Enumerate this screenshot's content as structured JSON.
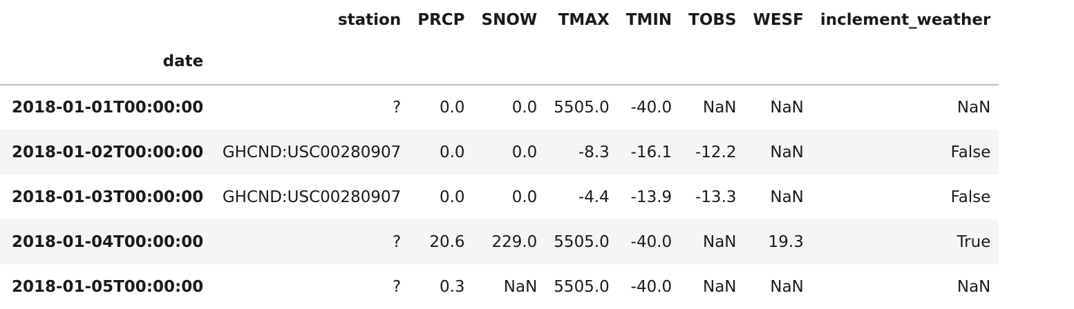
{
  "table": {
    "columns": [
      "station",
      "PRCP",
      "SNOW",
      "TMAX",
      "TMIN",
      "TOBS",
      "WESF",
      "inclement_weather"
    ],
    "index_name": "date",
    "rows": [
      {
        "index": "2018-01-01T00:00:00",
        "values": [
          "?",
          "0.0",
          "0.0",
          "5505.0",
          "-40.0",
          "NaN",
          "NaN",
          "NaN"
        ]
      },
      {
        "index": "2018-01-02T00:00:00",
        "values": [
          "GHCND:USC00280907",
          "0.0",
          "0.0",
          "-8.3",
          "-16.1",
          "-12.2",
          "NaN",
          "False"
        ]
      },
      {
        "index": "2018-01-03T00:00:00",
        "values": [
          "GHCND:USC00280907",
          "0.0",
          "0.0",
          "-4.4",
          "-13.9",
          "-13.3",
          "NaN",
          "False"
        ]
      },
      {
        "index": "2018-01-04T00:00:00",
        "values": [
          "?",
          "20.6",
          "229.0",
          "5505.0",
          "-40.0",
          "NaN",
          "19.3",
          "True"
        ]
      },
      {
        "index": "2018-01-05T00:00:00",
        "values": [
          "?",
          "0.3",
          "NaN",
          "5505.0",
          "-40.0",
          "NaN",
          "NaN",
          "NaN"
        ]
      }
    ]
  }
}
